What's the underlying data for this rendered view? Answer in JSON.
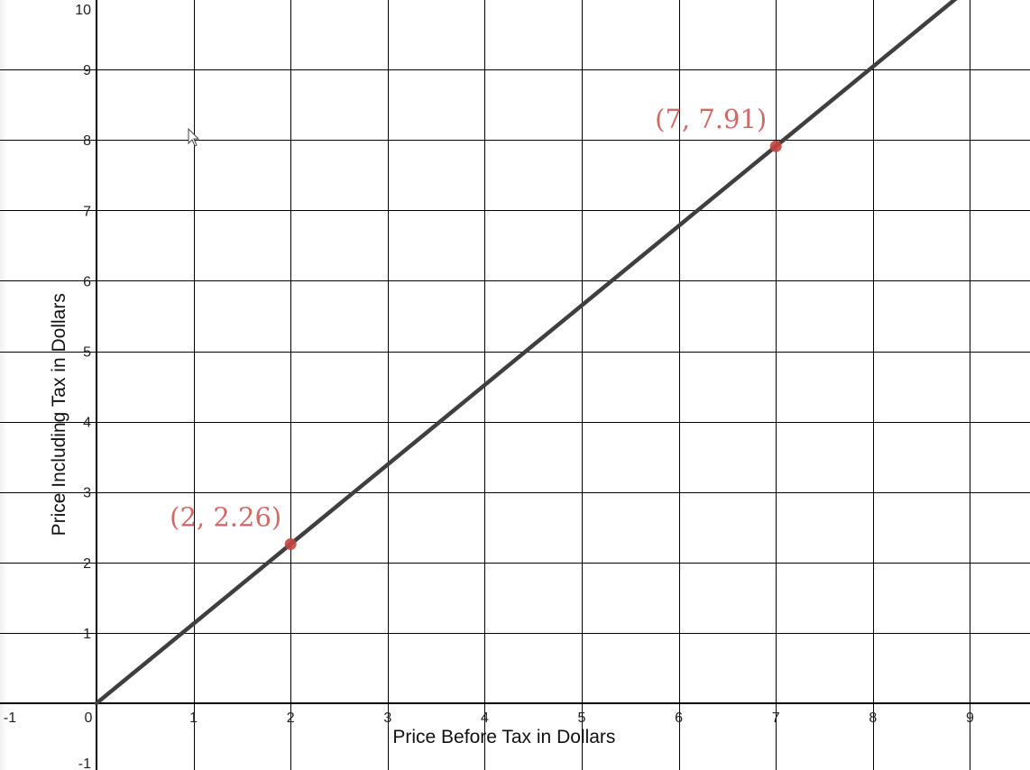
{
  "chart_data": {
    "type": "line",
    "xlabel": "Price Before Tax in Dollars",
    "ylabel": "Price Including Tax in Dollars",
    "xlim": [
      -1,
      9.6
    ],
    "ylim": [
      -1,
      10.1
    ],
    "grid": true,
    "x_ticks": [
      "-1",
      "0",
      "1",
      "2",
      "3",
      "4",
      "5",
      "6",
      "7",
      "8",
      "9"
    ],
    "y_ticks": [
      "-1",
      "1",
      "2",
      "3",
      "4",
      "5",
      "6",
      "7",
      "8",
      "9",
      "10"
    ],
    "line": {
      "slope": 1.13,
      "intercept": 0,
      "color": "#3f3f3f"
    },
    "points": [
      {
        "x": 2,
        "y": 2.26,
        "label": "(2, 2.26)"
      },
      {
        "x": 7,
        "y": 7.91,
        "label": "(7, 7.91)"
      }
    ],
    "point_color": "#c74440"
  }
}
